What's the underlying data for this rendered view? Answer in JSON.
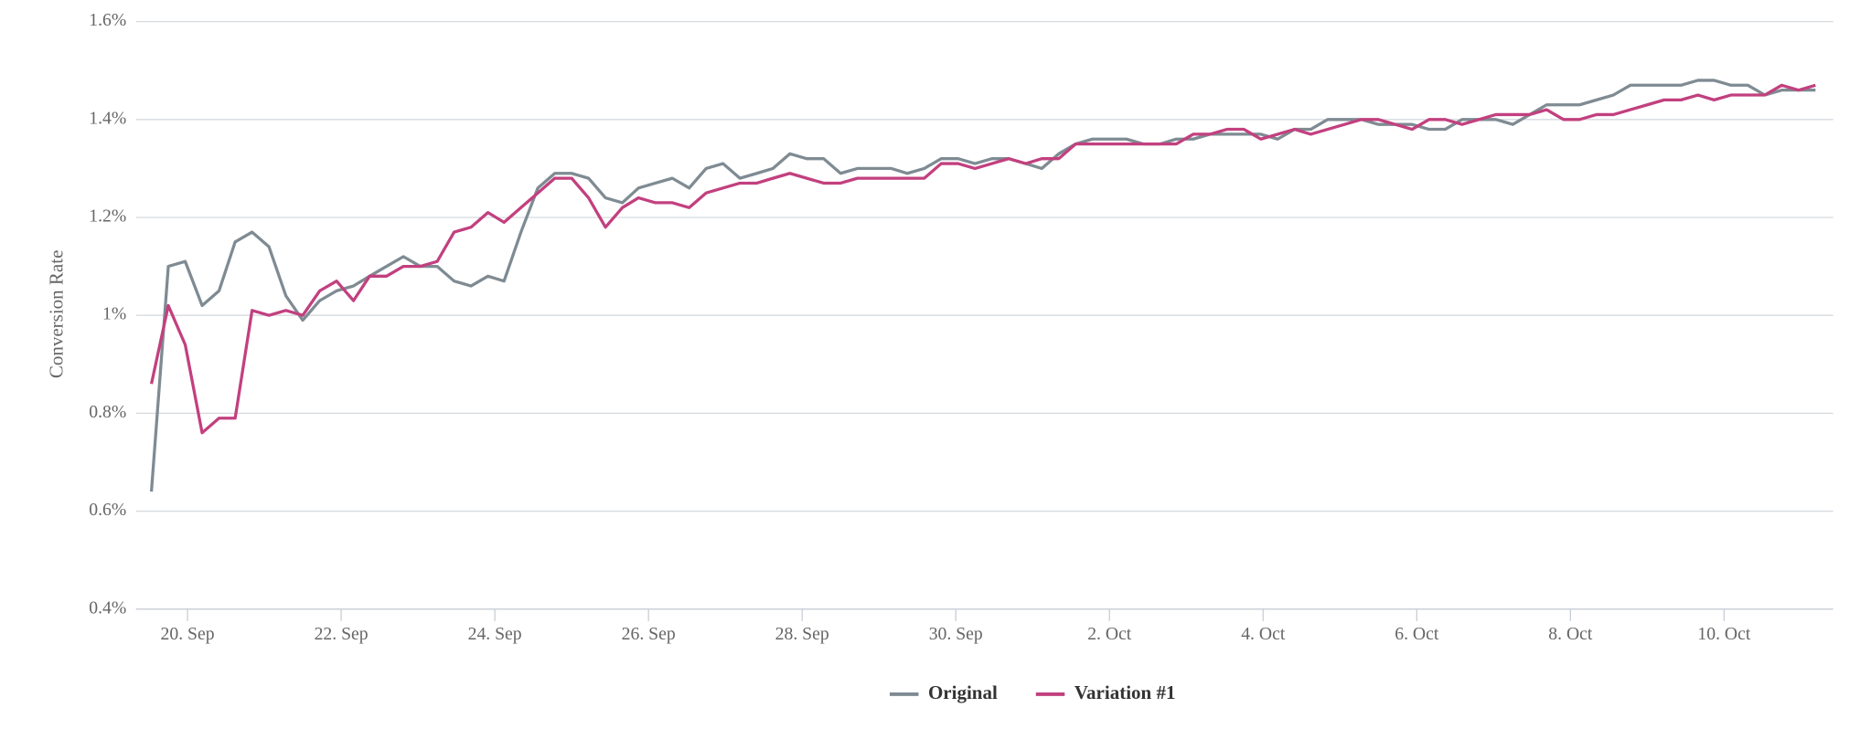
{
  "chart_data": {
    "type": "line",
    "y_label": "Conversion Rate",
    "ylim": [
      0.4,
      1.6
    ],
    "yticks": [
      {
        "value": 0.4,
        "label": "0.4%"
      },
      {
        "value": 0.6,
        "label": "0.6%"
      },
      {
        "value": 0.8,
        "label": "0.8%"
      },
      {
        "value": 1,
        "label": "1%"
      },
      {
        "value": 1.2,
        "label": "1.2%"
      },
      {
        "value": 1.4,
        "label": "1.4%"
      },
      {
        "value": 1.6,
        "label": "1.6%"
      }
    ],
    "xlim": [
      19.33,
      41.42
    ],
    "xticks": [
      {
        "value": 20,
        "label": "20. Sep"
      },
      {
        "value": 22,
        "label": "22. Sep"
      },
      {
        "value": 24,
        "label": "24. Sep"
      },
      {
        "value": 26,
        "label": "26. Sep"
      },
      {
        "value": 28,
        "label": "28. Sep"
      },
      {
        "value": 30,
        "label": "30. Sep"
      },
      {
        "value": 32,
        "label": "2. Oct"
      },
      {
        "value": 34,
        "label": "4. Oct"
      },
      {
        "value": 36,
        "label": "6. Oct"
      },
      {
        "value": 38,
        "label": "8. Oct"
      },
      {
        "value": 40,
        "label": "10. Oct"
      }
    ],
    "grid": true,
    "legend": "bottom",
    "x": [
      19.53,
      19.75,
      19.97,
      20.19,
      20.41,
      20.62,
      20.84,
      21.06,
      21.28,
      21.5,
      21.72,
      21.94,
      22.16,
      22.37,
      22.59,
      22.81,
      23.03,
      23.25,
      23.47,
      23.69,
      23.91,
      24.12,
      24.34,
      24.56,
      24.78,
      25.0,
      25.22,
      25.44,
      25.66,
      25.87,
      26.09,
      26.31,
      26.53,
      26.75,
      26.97,
      27.19,
      27.41,
      27.62,
      27.84,
      28.06,
      28.28,
      28.5,
      28.72,
      28.94,
      29.16,
      29.37,
      29.59,
      29.81,
      30.03,
      30.25,
      30.47,
      30.69,
      30.91,
      31.12,
      31.34,
      31.56,
      31.78,
      32.0,
      32.22,
      32.44,
      32.66,
      32.87,
      33.09,
      33.31,
      33.53,
      33.75,
      33.97,
      34.19,
      34.41,
      34.62,
      34.84,
      35.06,
      35.28,
      35.5,
      35.72,
      35.94,
      36.16,
      36.37,
      36.59,
      36.81,
      37.03,
      37.25,
      37.47,
      37.69,
      37.91,
      38.12,
      38.34,
      38.56,
      38.78,
      39.0,
      39.22,
      39.44,
      39.66,
      39.87,
      40.09,
      40.31,
      40.53,
      40.75,
      40.97,
      41.19
    ],
    "series": [
      {
        "name": "Original",
        "color": "#7f8b93",
        "values": [
          0.64,
          1.1,
          1.11,
          1.02,
          1.05,
          1.15,
          1.17,
          1.14,
          1.04,
          0.99,
          1.03,
          1.05,
          1.06,
          1.08,
          1.1,
          1.12,
          1.1,
          1.1,
          1.07,
          1.06,
          1.08,
          1.07,
          1.17,
          1.26,
          1.29,
          1.29,
          1.28,
          1.24,
          1.23,
          1.26,
          1.27,
          1.28,
          1.26,
          1.3,
          1.31,
          1.28,
          1.29,
          1.3,
          1.33,
          1.32,
          1.32,
          1.29,
          1.3,
          1.3,
          1.3,
          1.29,
          1.3,
          1.32,
          1.32,
          1.31,
          1.32,
          1.32,
          1.31,
          1.3,
          1.33,
          1.35,
          1.36,
          1.36,
          1.36,
          1.35,
          1.35,
          1.36,
          1.36,
          1.37,
          1.37,
          1.37,
          1.37,
          1.36,
          1.38,
          1.38,
          1.4,
          1.4,
          1.4,
          1.39,
          1.39,
          1.39,
          1.38,
          1.38,
          1.4,
          1.4,
          1.4,
          1.39,
          1.41,
          1.43,
          1.43,
          1.43,
          1.44,
          1.45,
          1.47,
          1.47,
          1.47,
          1.47,
          1.48,
          1.48,
          1.47,
          1.47,
          1.45,
          1.46,
          1.46,
          1.46
        ]
      },
      {
        "name": "Variation #1",
        "color": "#c2407f",
        "values": [
          0.86,
          1.02,
          0.94,
          0.76,
          0.79,
          0.79,
          1.01,
          1.0,
          1.01,
          1.0,
          1.05,
          1.07,
          1.03,
          1.08,
          1.08,
          1.1,
          1.1,
          1.11,
          1.17,
          1.18,
          1.21,
          1.19,
          1.22,
          1.25,
          1.28,
          1.28,
          1.24,
          1.18,
          1.22,
          1.24,
          1.23,
          1.23,
          1.22,
          1.25,
          1.26,
          1.27,
          1.27,
          1.28,
          1.29,
          1.28,
          1.27,
          1.27,
          1.28,
          1.28,
          1.28,
          1.28,
          1.28,
          1.31,
          1.31,
          1.3,
          1.31,
          1.32,
          1.31,
          1.32,
          1.32,
          1.35,
          1.35,
          1.35,
          1.35,
          1.35,
          1.35,
          1.35,
          1.37,
          1.37,
          1.38,
          1.38,
          1.36,
          1.37,
          1.38,
          1.37,
          1.38,
          1.39,
          1.4,
          1.4,
          1.39,
          1.38,
          1.4,
          1.4,
          1.39,
          1.4,
          1.41,
          1.41,
          1.41,
          1.42,
          1.4,
          1.4,
          1.41,
          1.41,
          1.42,
          1.43,
          1.44,
          1.44,
          1.45,
          1.44,
          1.45,
          1.45,
          1.45,
          1.47,
          1.46,
          1.47
        ]
      }
    ]
  }
}
